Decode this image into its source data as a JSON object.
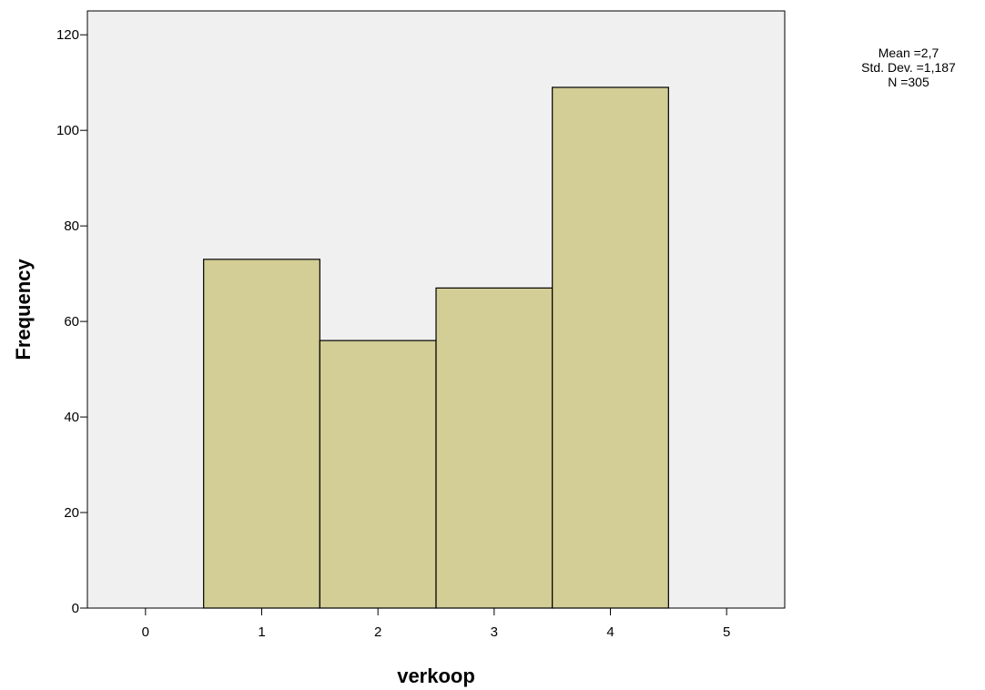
{
  "chart_data": {
    "type": "bar",
    "subtype": "histogram",
    "xlabel": "verkoop",
    "ylabel": "Frequency",
    "xlim": [
      -0.5,
      5.5
    ],
    "ylim": [
      0,
      125
    ],
    "xticks": [
      0,
      1,
      2,
      3,
      4,
      5
    ],
    "yticks": [
      0,
      20,
      40,
      60,
      80,
      100,
      120
    ],
    "bins": [
      {
        "center": 1,
        "value": 73
      },
      {
        "center": 2,
        "value": 56
      },
      {
        "center": 3,
        "value": 67
      },
      {
        "center": 4,
        "value": 109
      }
    ],
    "bar_color": "#d3cd96",
    "plot_background": "#f0f0f0",
    "grid": false,
    "stats": [
      "Mean =2,7",
      "Std. Dev. =1,187",
      "N =305"
    ]
  }
}
